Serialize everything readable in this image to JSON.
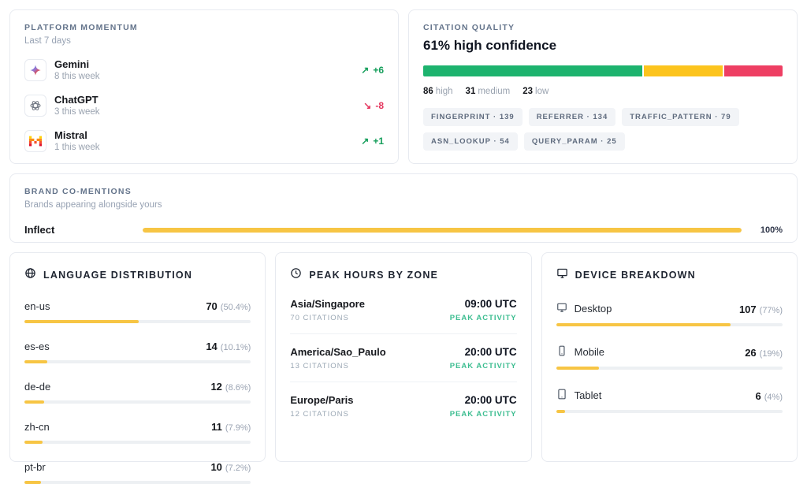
{
  "platform_momentum": {
    "title": "PLATFORM MOMENTUM",
    "subtitle": "Last 7 days",
    "items": [
      {
        "name": "Gemini",
        "meta": "8 this week",
        "arrow": "↗",
        "trend": "+6",
        "trend_color": "#149e5a"
      },
      {
        "name": "ChatGPT",
        "meta": "3 this week",
        "arrow": "↘",
        "trend": "-8",
        "trend_color": "#e5365e"
      },
      {
        "name": "Mistral",
        "meta": "1 this week",
        "arrow": "↗",
        "trend": "+1",
        "trend_color": "#149e5a"
      }
    ]
  },
  "citation_quality": {
    "title": "CITATION QUALITY",
    "headline": "61% high confidence",
    "segments": [
      {
        "label": "high",
        "value": 86,
        "pct": 61.4,
        "color": "#1db36e"
      },
      {
        "label": "medium",
        "value": 31,
        "pct": 22.1,
        "color": "#fcc41e"
      },
      {
        "label": "low",
        "value": 23,
        "pct": 16.4,
        "color": "#ee3f63"
      }
    ],
    "legend": [
      {
        "value": "86",
        "label": "high"
      },
      {
        "value": "31",
        "label": "medium"
      },
      {
        "value": "23",
        "label": "low"
      }
    ],
    "tags": [
      "FINGERPRINT · 139",
      "REFERRER · 134",
      "TRAFFIC_PATTERN · 79",
      "ASN_LOOKUP · 54",
      "QUERY_PARAM · 25"
    ]
  },
  "brand_co_mentions": {
    "title": "BRAND CO-MENTIONS",
    "subtitle": "Brands appearing alongside yours",
    "items": [
      {
        "name": "Inflect",
        "pct": 100,
        "pct_label": "100%"
      }
    ]
  },
  "language_distribution": {
    "title": "LANGUAGE DISTRIBUTION",
    "items": [
      {
        "label": "en-us",
        "value": "70",
        "pct": 50.4,
        "pct_label": "(50.4%)"
      },
      {
        "label": "es-es",
        "value": "14",
        "pct": 10.1,
        "pct_label": "(10.1%)"
      },
      {
        "label": "de-de",
        "value": "12",
        "pct": 8.6,
        "pct_label": "(8.6%)"
      },
      {
        "label": "zh-cn",
        "value": "11",
        "pct": 7.9,
        "pct_label": "(7.9%)"
      },
      {
        "label": "pt-br",
        "value": "10",
        "pct": 7.2,
        "pct_label": "(7.2%)"
      }
    ]
  },
  "peak_hours": {
    "title": "PEAK HOURS BY ZONE",
    "items": [
      {
        "zone": "Asia/Singapore",
        "citations": "70 CITATIONS",
        "time": "09:00 UTC",
        "status": "PEAK ACTIVITY"
      },
      {
        "zone": "America/Sao_Paulo",
        "citations": "13 CITATIONS",
        "time": "20:00 UTC",
        "status": "PEAK ACTIVITY"
      },
      {
        "zone": "Europe/Paris",
        "citations": "12 CITATIONS",
        "time": "20:00 UTC",
        "status": "PEAK ACTIVITY"
      }
    ]
  },
  "device_breakdown": {
    "title": "DEVICE BREAKDOWN",
    "items": [
      {
        "label": "Desktop",
        "value": "107",
        "pct": 77,
        "pct_label": "(77%)"
      },
      {
        "label": "Mobile",
        "value": "26",
        "pct": 19,
        "pct_label": "(19%)"
      },
      {
        "label": "Tablet",
        "value": "6",
        "pct": 4,
        "pct_label": "(4%)"
      }
    ]
  }
}
